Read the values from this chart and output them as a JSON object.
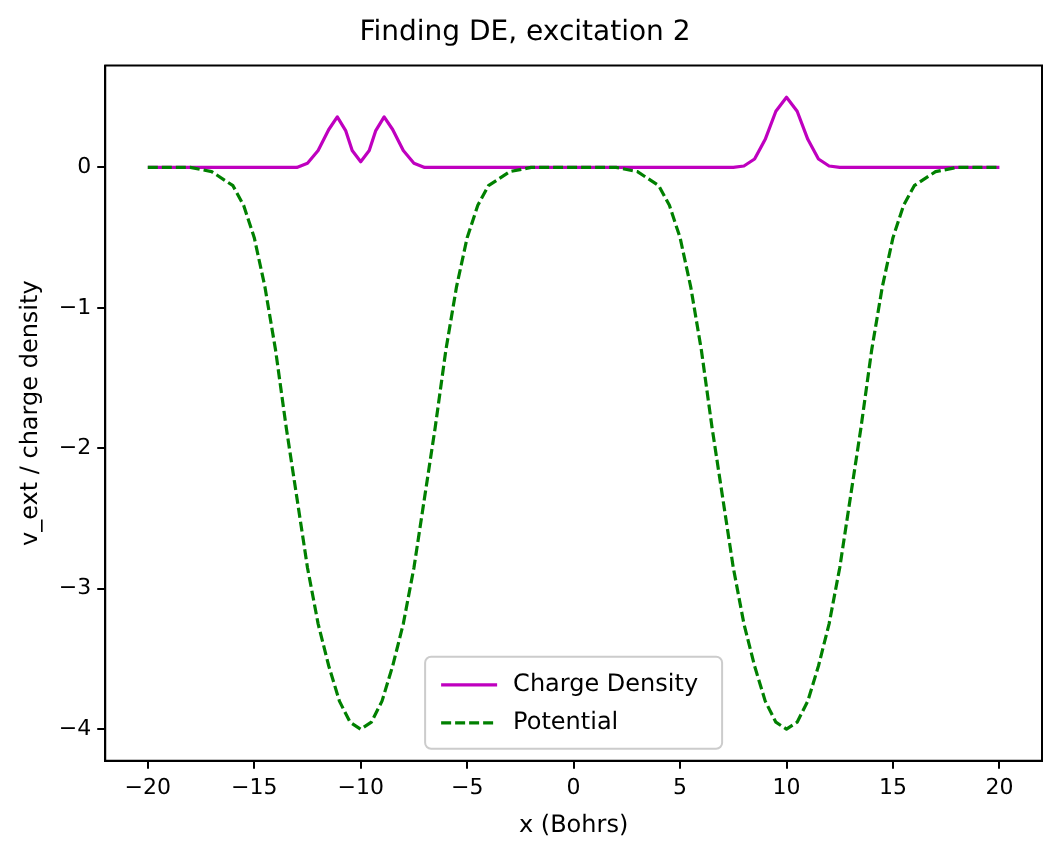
{
  "chart_data": {
    "type": "line",
    "title": "Finding DE, excitation 2",
    "xlabel": "x (Bohrs)",
    "ylabel": "v_ext / charge density",
    "xlim": [
      -22,
      22
    ],
    "xticks": [
      -20,
      -15,
      -10,
      -5,
      0,
      5,
      10,
      15,
      20
    ],
    "ylim": [
      -4.225,
      0.725
    ],
    "yticks": [
      -4,
      -3,
      -2,
      -1,
      0
    ],
    "grid": false,
    "legend": "bottom",
    "marker": "none",
    "series": [
      {
        "name": "Charge Density",
        "color": "#bf00bf",
        "line_style": "solid",
        "x": [
          -20,
          -13,
          -12.5,
          -12,
          -11.5,
          -11.1,
          -10.7,
          -10.4,
          -10,
          -9.6,
          -9.3,
          -8.9,
          -8.5,
          -8,
          -7.5,
          -7,
          7.5,
          8,
          8.5,
          9,
          9.5,
          10,
          10.5,
          11,
          11.5,
          12,
          12.5,
          20
        ],
        "values": [
          0,
          0,
          0.03,
          0.12,
          0.27,
          0.36,
          0.26,
          0.12,
          0.04,
          0.12,
          0.26,
          0.36,
          0.27,
          0.12,
          0.03,
          0,
          0,
          0.01,
          0.06,
          0.2,
          0.4,
          0.5,
          0.4,
          0.2,
          0.06,
          0.01,
          0,
          0
        ]
      },
      {
        "name": "Potential",
        "color": "#008000",
        "line_style": "dashed",
        "x": [
          -20,
          -18,
          -17,
          -16,
          -15.5,
          -15,
          -14.5,
          -14,
          -13.5,
          -13,
          -12.5,
          -12,
          -11.5,
          -11,
          -10.5,
          -10,
          -9.5,
          -9,
          -8.5,
          -8,
          -7.5,
          -7,
          -6.5,
          -6,
          -5.5,
          -5,
          -4.5,
          -4,
          -3,
          -2,
          0,
          2,
          3,
          4,
          4.5,
          5,
          5.5,
          6,
          6.5,
          7,
          7.5,
          8,
          8.5,
          9,
          9.5,
          10,
          10.5,
          11,
          11.5,
          12,
          12.5,
          13,
          13.5,
          14,
          14.5,
          15,
          15.5,
          16,
          17,
          18,
          20
        ],
        "values": [
          0,
          0,
          -0.03,
          -0.13,
          -0.27,
          -0.5,
          -0.85,
          -1.3,
          -1.85,
          -2.35,
          -2.85,
          -3.25,
          -3.55,
          -3.8,
          -3.95,
          -4,
          -3.95,
          -3.8,
          -3.55,
          -3.25,
          -2.85,
          -2.35,
          -1.85,
          -1.3,
          -0.85,
          -0.5,
          -0.27,
          -0.13,
          -0.03,
          0,
          0,
          0,
          -0.03,
          -0.13,
          -0.27,
          -0.5,
          -0.85,
          -1.3,
          -1.85,
          -2.35,
          -2.85,
          -3.25,
          -3.55,
          -3.8,
          -3.95,
          -4,
          -3.95,
          -3.8,
          -3.55,
          -3.25,
          -2.85,
          -2.35,
          -1.85,
          -1.3,
          -0.85,
          -0.5,
          -0.27,
          -0.13,
          -0.03,
          0,
          0
        ]
      }
    ]
  }
}
